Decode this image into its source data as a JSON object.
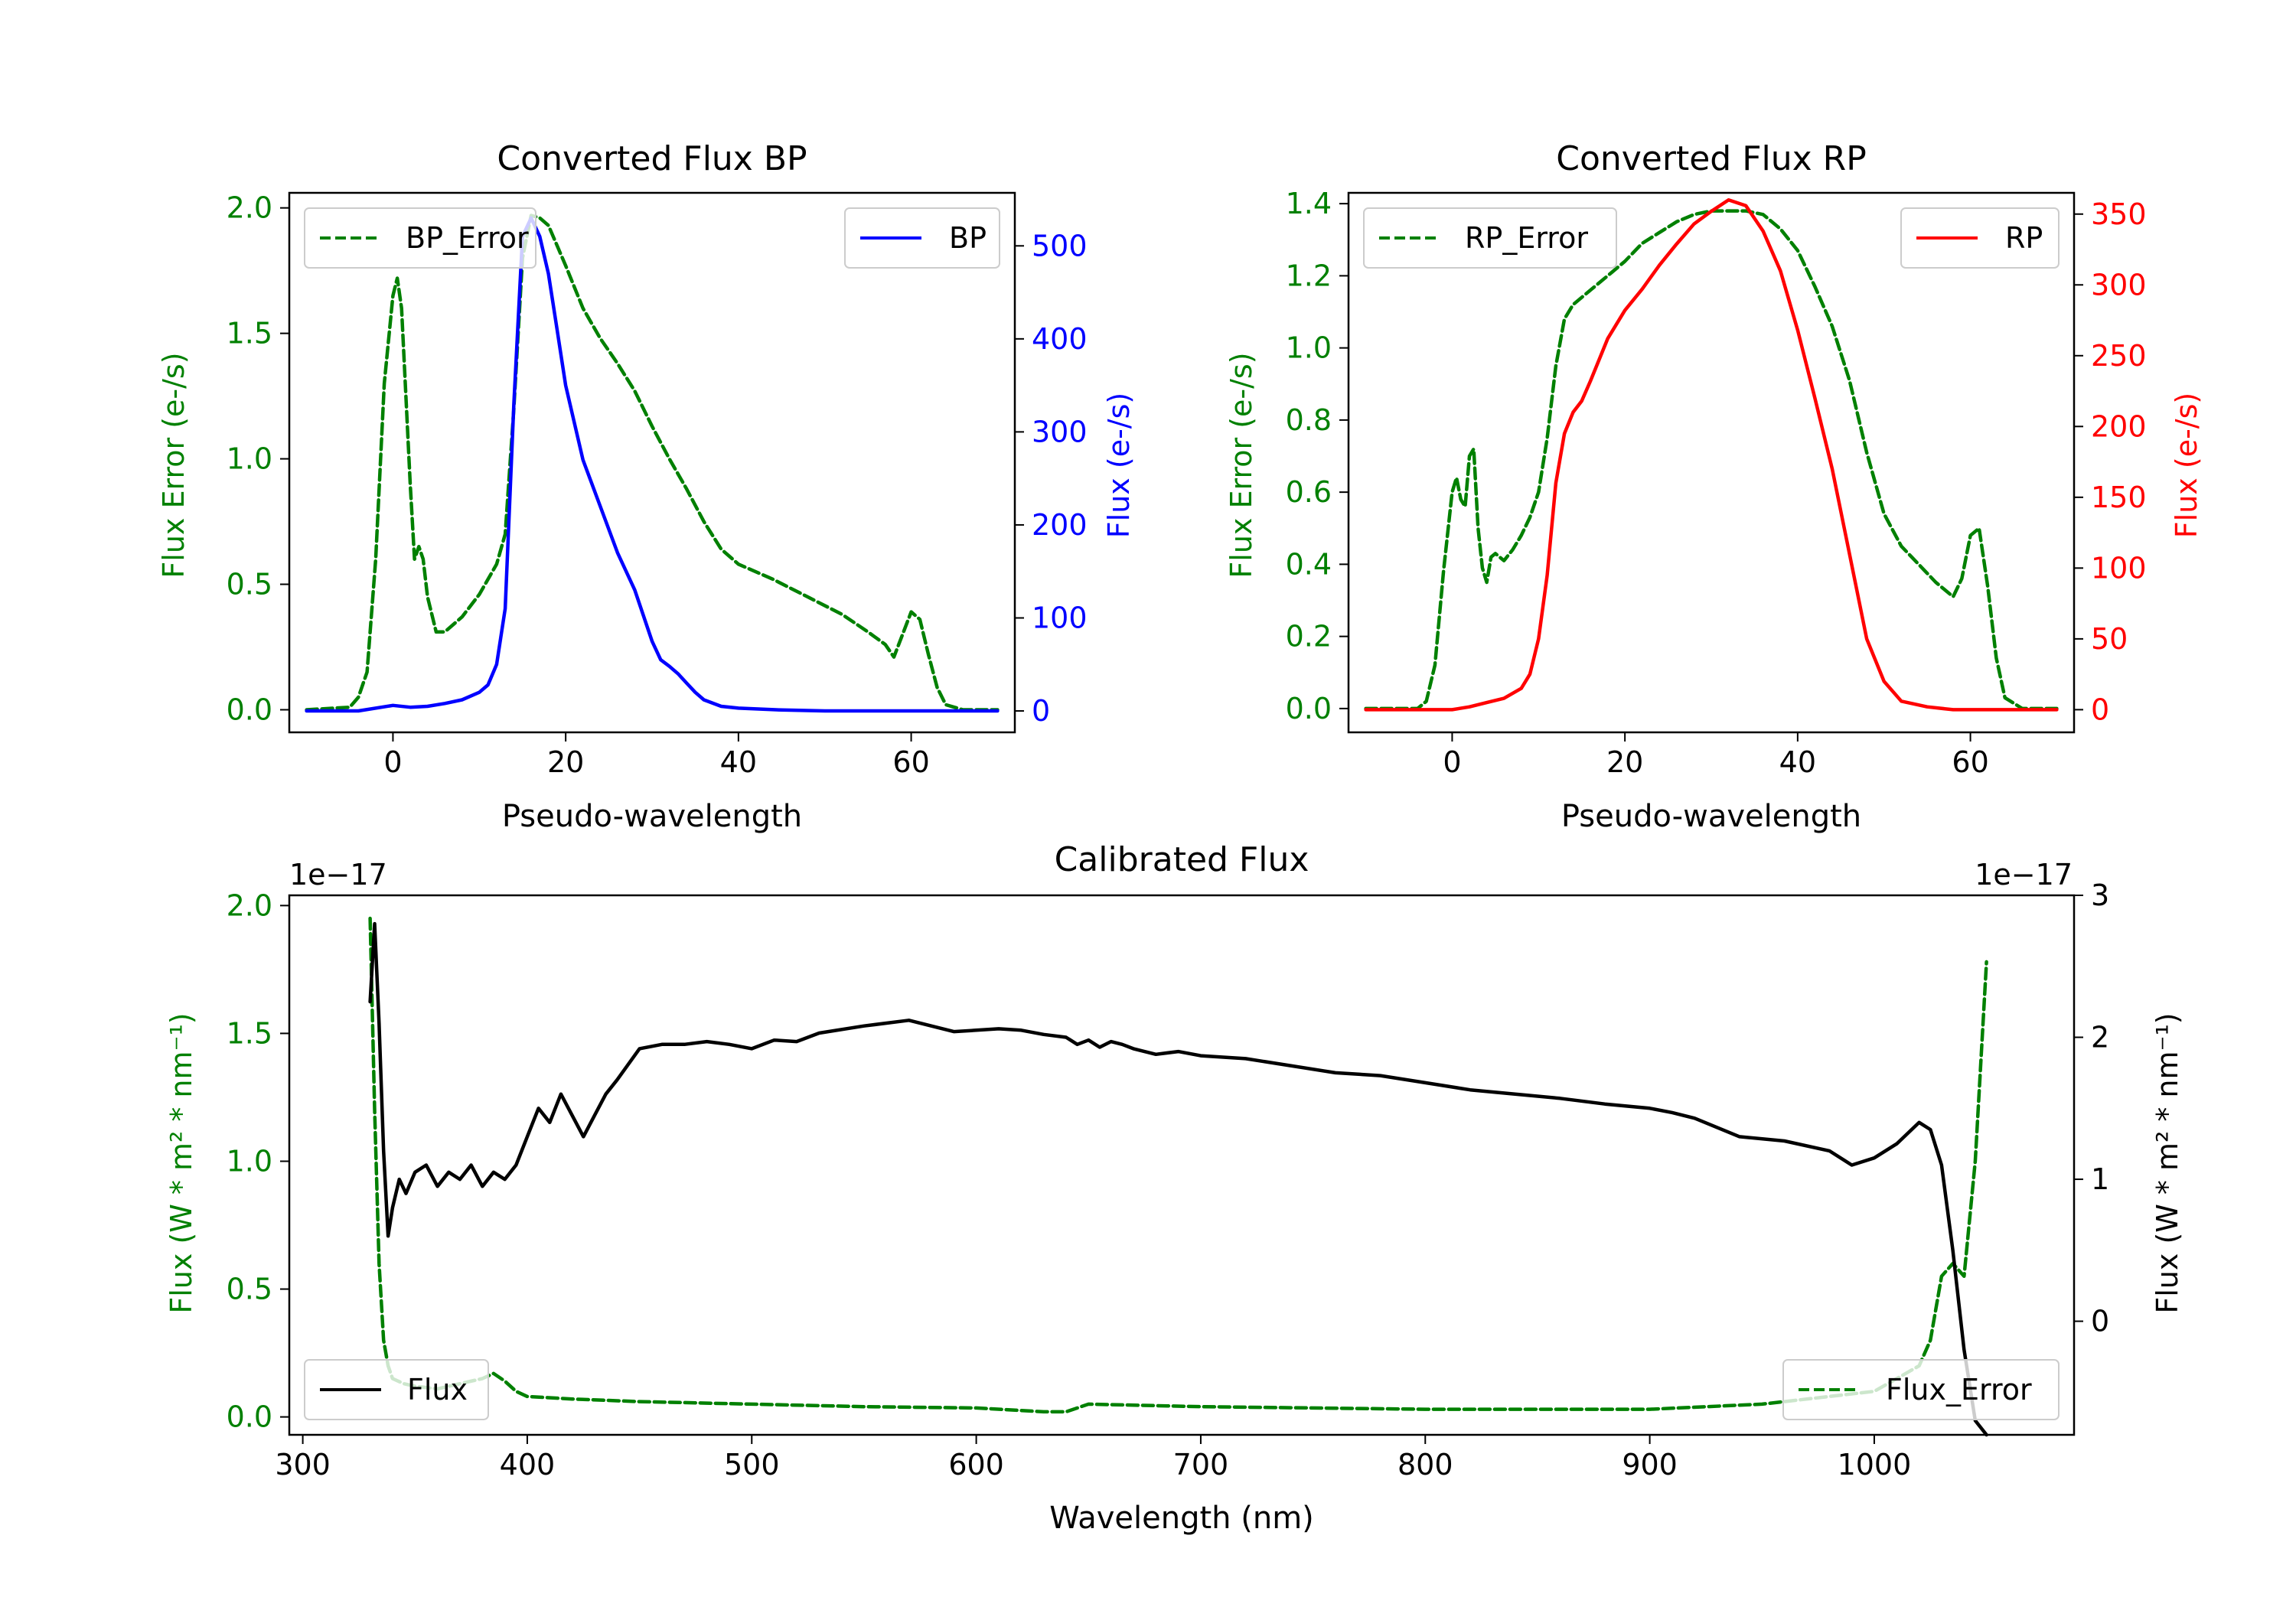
{
  "chart_data": [
    {
      "id": "bp",
      "type": "line",
      "title": "Converted Flux BP",
      "xlabel": "Pseudo-wavelength",
      "ylabel_left": "Flux Error (e-/s)",
      "ylabel_right": "Flux (e-/s)",
      "xlim": [
        -12,
        72
      ],
      "ylim_left": [
        -0.09,
        2.06
      ],
      "ylim_right": [
        -23,
        557
      ],
      "xticks": [
        0,
        20,
        40,
        60
      ],
      "yticks_left": [
        "0.0",
        "0.5",
        "1.0",
        "1.5",
        "2.0"
      ],
      "yticks_right": [
        "0",
        "100",
        "200",
        "300",
        "400",
        "500"
      ],
      "legend_left": {
        "label": "BP_Error",
        "placement": "upper-left"
      },
      "legend_right": {
        "label": "BP",
        "placement": "upper-right"
      },
      "series": [
        {
          "name": "BP_Error",
          "axis": "left",
          "color": "#008000",
          "dash": true,
          "x": [
            -10,
            -5,
            -4,
            -3,
            -2,
            -1,
            0,
            0.5,
            1,
            2,
            2.5,
            3,
            3.5,
            4,
            5,
            6,
            8,
            10,
            12,
            13,
            14,
            15,
            16,
            17,
            18,
            19,
            20,
            22,
            24,
            26,
            28,
            30,
            32,
            34,
            36,
            38,
            40,
            44,
            48,
            52,
            55,
            57,
            58,
            59,
            60,
            61,
            62,
            63,
            64,
            66,
            70
          ],
          "values": [
            0,
            0.01,
            0.05,
            0.15,
            0.6,
            1.3,
            1.65,
            1.72,
            1.6,
            0.9,
            0.6,
            0.65,
            0.6,
            0.45,
            0.31,
            0.31,
            0.37,
            0.46,
            0.58,
            0.7,
            1.2,
            1.8,
            1.97,
            1.96,
            1.93,
            1.85,
            1.77,
            1.6,
            1.48,
            1.38,
            1.27,
            1.13,
            1.0,
            0.88,
            0.75,
            0.64,
            0.58,
            0.52,
            0.45,
            0.38,
            0.31,
            0.26,
            0.21,
            0.3,
            0.39,
            0.36,
            0.22,
            0.09,
            0.02,
            0,
            0
          ]
        },
        {
          "name": "BP",
          "axis": "right",
          "color": "#0000ff",
          "dash": false,
          "x": [
            -10,
            -4,
            0,
            2,
            4,
            6,
            8,
            10,
            11,
            12,
            13,
            14,
            15,
            16,
            17,
            18,
            19,
            20,
            22,
            24,
            26,
            28,
            30,
            31,
            32,
            33,
            34,
            35,
            36,
            38,
            40,
            45,
            50,
            55,
            60,
            65,
            70
          ],
          "values": [
            0,
            0,
            6,
            4,
            5,
            8,
            12,
            20,
            28,
            50,
            110,
            330,
            510,
            530,
            510,
            470,
            410,
            350,
            270,
            220,
            170,
            130,
            75,
            55,
            48,
            40,
            30,
            20,
            12,
            5,
            3,
            1,
            0,
            0,
            0,
            0,
            0
          ]
        }
      ]
    },
    {
      "id": "rp",
      "type": "line",
      "title": "Converted Flux RP",
      "xlabel": "Pseudo-wavelength",
      "ylabel_left": "Flux Error (e-/s)",
      "ylabel_right": "Flux (e-/s)",
      "xlim": [
        -12,
        72
      ],
      "ylim_left": [
        -0.066,
        1.43
      ],
      "ylim_right": [
        -16,
        365
      ],
      "xticks": [
        0,
        20,
        40,
        60
      ],
      "yticks_left": [
        "0.0",
        "0.2",
        "0.4",
        "0.6",
        "0.8",
        "1.0",
        "1.2",
        "1.4"
      ],
      "yticks_right": [
        "0",
        "50",
        "100",
        "150",
        "200",
        "250",
        "300",
        "350"
      ],
      "legend_left": {
        "label": "RP_Error",
        "placement": "upper-left"
      },
      "legend_right": {
        "label": "RP",
        "placement": "upper-right"
      },
      "series": [
        {
          "name": "RP_Error",
          "axis": "left",
          "color": "#008000",
          "dash": true,
          "x": [
            -10,
            -4,
            -3,
            -2,
            -1,
            0,
            0.5,
            1,
            1.5,
            2,
            2.5,
            3,
            3.5,
            4,
            4.5,
            5,
            6,
            7,
            8,
            9,
            10,
            11,
            12,
            13,
            14,
            16,
            18,
            20,
            22,
            24,
            26,
            28,
            30,
            32,
            34,
            36,
            38,
            40,
            42,
            44,
            46,
            48,
            50,
            52,
            54,
            56,
            57,
            58,
            59,
            60,
            61,
            62,
            63,
            64,
            66,
            70
          ],
          "values": [
            0,
            0,
            0.02,
            0.12,
            0.38,
            0.6,
            0.64,
            0.58,
            0.56,
            0.7,
            0.72,
            0.5,
            0.39,
            0.35,
            0.42,
            0.43,
            0.41,
            0.44,
            0.48,
            0.53,
            0.6,
            0.75,
            0.95,
            1.08,
            1.12,
            1.16,
            1.2,
            1.24,
            1.29,
            1.32,
            1.35,
            1.37,
            1.38,
            1.38,
            1.38,
            1.37,
            1.33,
            1.27,
            1.17,
            1.06,
            0.91,
            0.71,
            0.54,
            0.45,
            0.4,
            0.35,
            0.33,
            0.31,
            0.36,
            0.48,
            0.5,
            0.34,
            0.14,
            0.03,
            0,
            0
          ]
        },
        {
          "name": "RP",
          "axis": "right",
          "color": "#ff0000",
          "dash": false,
          "x": [
            -10,
            -2,
            0,
            2,
            4,
            6,
            8,
            9,
            10,
            11,
            12,
            13,
            14,
            15,
            16,
            18,
            20,
            22,
            24,
            26,
            28,
            30,
            32,
            34,
            36,
            38,
            40,
            42,
            44,
            46,
            48,
            50,
            52,
            55,
            58,
            62,
            66,
            70
          ],
          "values": [
            0,
            0,
            0,
            2,
            5,
            8,
            15,
            25,
            50,
            95,
            160,
            195,
            210,
            218,
            232,
            262,
            282,
            297,
            314,
            329,
            343,
            352,
            360,
            356,
            338,
            310,
            268,
            220,
            170,
            110,
            50,
            20,
            6,
            2,
            0,
            0,
            0,
            0
          ]
        }
      ]
    },
    {
      "id": "calibrated",
      "type": "line",
      "title": "Calibrated Flux",
      "xlabel": "Wavelength (nm)",
      "ylabel_left": "Flux (W * m² * nm⁻¹)",
      "ylabel_right": "Flux (W * m² * nm⁻¹)",
      "offset_left": "1e−17",
      "offset_right": "1e−17",
      "xlim": [
        294,
        1089
      ],
      "ylim_left": [
        -0.07,
        2.04
      ],
      "ylim_right": [
        -0.8,
        3.0
      ],
      "xticks": [
        300,
        400,
        500,
        600,
        700,
        800,
        900,
        1000
      ],
      "yticks_left": [
        "0.0",
        "0.5",
        "1.0",
        "1.5",
        "2.0"
      ],
      "yticks_right": [
        "0",
        "1",
        "2",
        "3"
      ],
      "legend_left": {
        "label": "Flux",
        "placement": "lower-left"
      },
      "legend_right": {
        "label": "Flux_Error",
        "placement": "lower-right"
      },
      "series": [
        {
          "name": "Flux_Error",
          "axis": "left",
          "color": "#008000",
          "dash": true,
          "x": [
            330,
            332,
            334,
            336,
            338,
            340,
            345,
            350,
            360,
            370,
            380,
            385,
            390,
            395,
            400,
            420,
            450,
            500,
            550,
            600,
            630,
            640,
            650,
            700,
            800,
            900,
            950,
            1000,
            1010,
            1020,
            1025,
            1030,
            1035,
            1040,
            1045,
            1050
          ],
          "values": [
            1.95,
            1.2,
            0.6,
            0.3,
            0.2,
            0.15,
            0.13,
            0.12,
            0.11,
            0.13,
            0.15,
            0.17,
            0.14,
            0.1,
            0.08,
            0.07,
            0.06,
            0.05,
            0.04,
            0.035,
            0.02,
            0.02,
            0.05,
            0.04,
            0.03,
            0.03,
            0.05,
            0.1,
            0.15,
            0.2,
            0.3,
            0.55,
            0.6,
            0.55,
            1.0,
            1.78
          ]
        },
        {
          "name": "Flux",
          "axis": "right",
          "color": "#000000",
          "dash": false,
          "x": [
            330,
            332,
            334,
            336,
            338,
            340,
            343,
            346,
            350,
            355,
            360,
            365,
            370,
            375,
            380,
            385,
            390,
            395,
            400,
            405,
            410,
            415,
            420,
            425,
            430,
            435,
            440,
            450,
            460,
            470,
            480,
            490,
            500,
            510,
            520,
            530,
            550,
            560,
            570,
            580,
            590,
            600,
            610,
            620,
            630,
            640,
            645,
            650,
            655,
            660,
            665,
            670,
            680,
            690,
            700,
            720,
            740,
            760,
            780,
            800,
            820,
            840,
            860,
            880,
            900,
            910,
            920,
            940,
            960,
            980,
            990,
            1000,
            1010,
            1020,
            1025,
            1030,
            1035,
            1040,
            1045,
            1050
          ],
          "values": [
            2.25,
            2.8,
            2.1,
            1.2,
            0.6,
            0.8,
            1.0,
            0.9,
            1.05,
            1.1,
            0.95,
            1.05,
            1.0,
            1.1,
            0.95,
            1.05,
            1.0,
            1.1,
            1.3,
            1.5,
            1.4,
            1.6,
            1.45,
            1.3,
            1.45,
            1.6,
            1.7,
            1.92,
            1.95,
            1.95,
            1.97,
            1.95,
            1.92,
            1.98,
            1.97,
            2.03,
            2.08,
            2.1,
            2.12,
            2.08,
            2.04,
            2.05,
            2.06,
            2.05,
            2.02,
            2.0,
            1.95,
            1.98,
            1.93,
            1.97,
            1.95,
            1.92,
            1.88,
            1.9,
            1.87,
            1.85,
            1.8,
            1.75,
            1.73,
            1.68,
            1.63,
            1.6,
            1.57,
            1.53,
            1.5,
            1.47,
            1.43,
            1.3,
            1.27,
            1.2,
            1.1,
            1.15,
            1.25,
            1.4,
            1.35,
            1.1,
            0.5,
            -0.2,
            -0.7,
            -0.8
          ]
        }
      ]
    }
  ]
}
